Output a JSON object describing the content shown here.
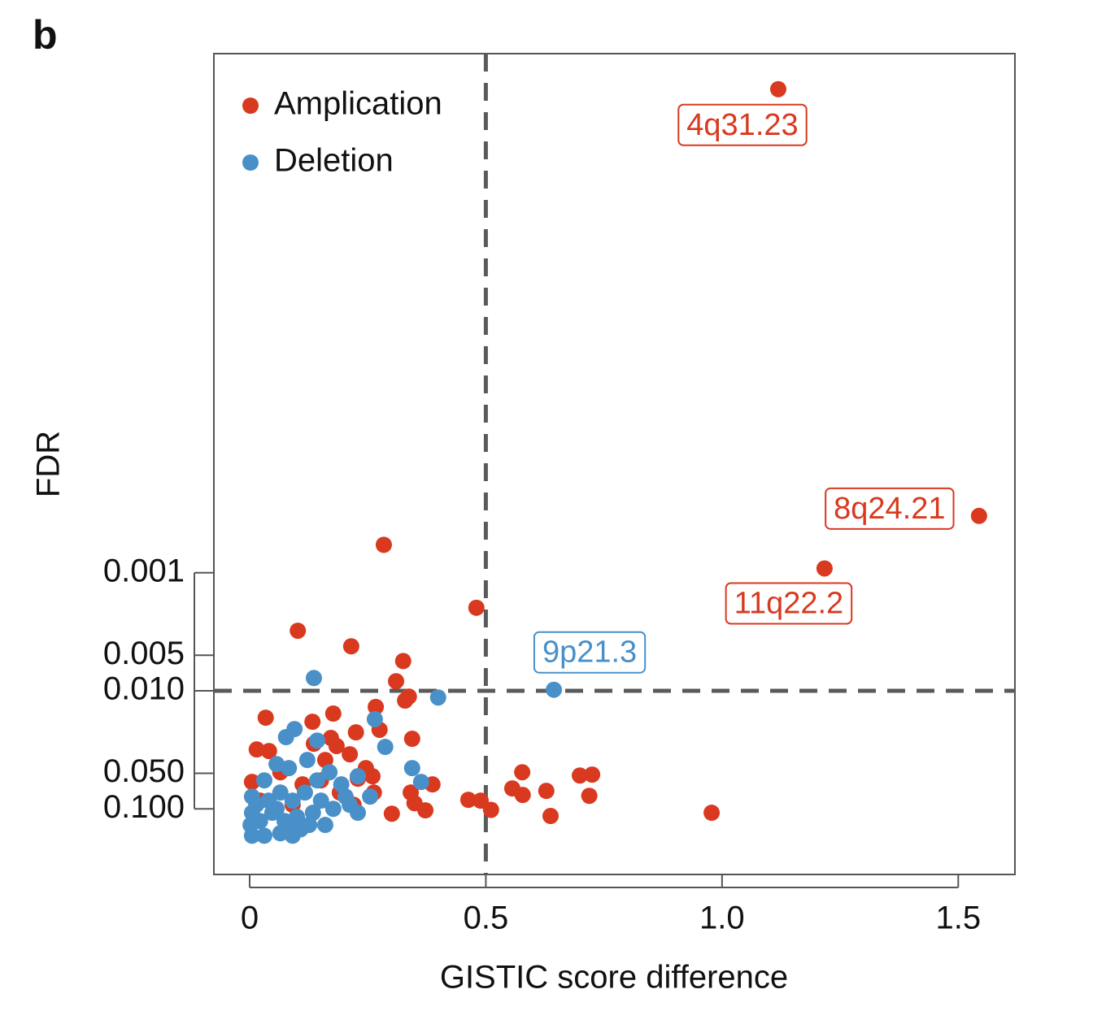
{
  "panel_label": "b",
  "chart_data": {
    "type": "scatter",
    "x_label": "GISTIC score difference",
    "y_label": "FDR",
    "xlim": [
      -0.0757,
      1.62
    ],
    "xticks": [
      0,
      0.5,
      {
        "value": 1,
        "label": "1.0"
      },
      1.5
    ],
    "ylim": [
      0.36,
      4e-08
    ],
    "log_y": true,
    "yticks": [
      0.001,
      0.005,
      {
        "value": 0.01,
        "label": "0.010"
      },
      {
        "value": 0.05,
        "label": "0.050"
      },
      {
        "value": 0.1,
        "label": "0.100"
      }
    ],
    "vlines": [
      0.5
    ],
    "hlines": [
      0.01
    ],
    "legend": "upper left",
    "series": [
      {
        "name": "Amplication",
        "color": "#d9391f",
        "x": [
          1.119,
          1.544,
          1.217,
          0.284,
          0.48,
          0.102,
          0.215,
          0.325,
          0.31,
          0.337,
          0.329,
          0.267,
          0.177,
          0.034,
          0.133,
          0.275,
          0.225,
          0.172,
          0.344,
          0.015,
          0.041,
          0.136,
          0.184,
          0.212,
          0.16,
          0.246,
          0.26,
          0.229,
          0.577,
          0.699,
          0.725,
          0.556,
          0.578,
          0.628,
          0.719,
          0.387,
          0.341,
          0.349,
          0.372,
          0.463,
          0.489,
          0.511,
          0.637,
          0.978,
          0.301,
          0.005,
          0.022,
          0.065,
          0.112,
          0.151,
          0.191,
          0.22,
          0.091,
          0.263
        ],
        "values": [
          8e-08,
          0.00033,
          0.00092,
          0.00058,
          0.00198,
          0.0031,
          0.0042,
          0.0056,
          0.0083,
          0.0112,
          0.0121,
          0.0137,
          0.0156,
          0.0169,
          0.0183,
          0.0214,
          0.0225,
          0.0251,
          0.0255,
          0.0314,
          0.0324,
          0.0281,
          0.0294,
          0.0345,
          0.0386,
          0.0452,
          0.053,
          0.0556,
          0.049,
          0.0522,
          0.0513,
          0.0672,
          0.0763,
          0.0705,
          0.0776,
          0.0621,
          0.0728,
          0.0895,
          0.103,
          0.0839,
          0.0853,
          0.102,
          0.115,
          0.108,
          0.11,
          0.0592,
          0.0853,
          0.049,
          0.0621,
          0.0574,
          0.0728,
          0.0925,
          0.0925,
          0.0728
        ],
        "labels": [
          "4q31.23",
          "8q24.21",
          "11q22.2",
          null,
          null,
          null,
          null,
          null,
          null,
          null,
          null,
          null,
          null,
          null,
          null,
          null,
          null,
          null,
          null,
          null,
          null,
          null,
          null,
          null,
          null,
          null,
          null,
          null,
          null,
          null,
          null,
          null,
          null,
          null,
          null,
          null,
          null,
          null,
          null,
          null,
          null,
          null,
          null,
          null,
          null,
          null,
          null,
          null,
          null,
          null,
          null,
          null,
          null,
          null
        ]
      },
      {
        "name": "Deletion",
        "color": "#4a90c8",
        "x": [
          0.644,
          0.136,
          0.399,
          0.265,
          0.287,
          0.143,
          0.077,
          0.095,
          0.344,
          0.363,
          0.122,
          0.057,
          0.083,
          0.229,
          0.255,
          0.031,
          0.005,
          0.04,
          0.065,
          0.091,
          0.117,
          0.151,
          0.177,
          0.203,
          0.229,
          0.005,
          0.022,
          0.048,
          0.074,
          0.1,
          0.126,
          0.16,
          0.002,
          0.005,
          0.031,
          0.065,
          0.091,
          0.108,
          0.014,
          0.143,
          0.169,
          0.194,
          0.057,
          0.134,
          0.083,
          0.212
        ],
        "values": [
          0.0098,
          0.0078,
          0.0114,
          0.0174,
          0.0299,
          0.0264,
          0.0247,
          0.0211,
          0.0452,
          0.0592,
          0.0386,
          0.0418,
          0.0452,
          0.053,
          0.0788,
          0.0574,
          0.0788,
          0.0853,
          0.0728,
          0.0853,
          0.0728,
          0.0853,
          0.1,
          0.0788,
          0.108,
          0.108,
          0.127,
          0.108,
          0.127,
          0.117,
          0.137,
          0.137,
          0.137,
          0.169,
          0.169,
          0.161,
          0.169,
          0.149,
          0.0925,
          0.0574,
          0.049,
          0.0621,
          0.1,
          0.108,
          0.137,
          0.0925
        ],
        "labels": [
          "9p21.3",
          null,
          null,
          null,
          null,
          null,
          null,
          null,
          null,
          null,
          null,
          null,
          null,
          null,
          null,
          null,
          null,
          null,
          null,
          null,
          null,
          null,
          null,
          null,
          null,
          null,
          null,
          null,
          null,
          null,
          null,
          null,
          null,
          null,
          null,
          null,
          null,
          null,
          null,
          null,
          null,
          null,
          null,
          null,
          null,
          null
        ]
      }
    ]
  }
}
